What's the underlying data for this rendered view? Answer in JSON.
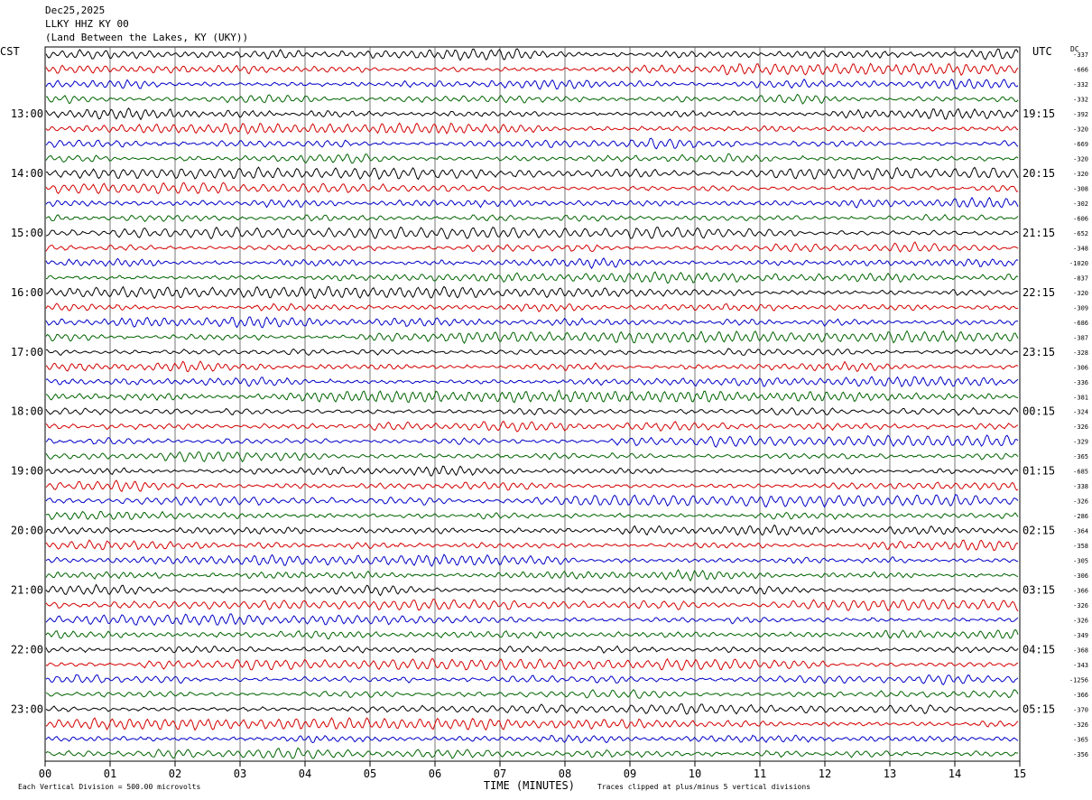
{
  "header": {
    "date": "Dec25,2025",
    "station": "LLKY HHZ KY 00",
    "location": "(Land Between the Lakes, KY (UKY))"
  },
  "axes": {
    "left_label": "CST",
    "right_label": "UTC",
    "dc_label": "DC",
    "x_label": "TIME (MINUTES)",
    "x_ticks": [
      "00",
      "01",
      "02",
      "03",
      "04",
      "05",
      "06",
      "07",
      "08",
      "09",
      "10",
      "11",
      "12",
      "13",
      "14",
      "15"
    ],
    "cst_hours": [
      "13:00",
      "14:00",
      "15:00",
      "16:00",
      "17:00",
      "18:00",
      "19:00",
      "20:00",
      "21:00",
      "22:00",
      "23:00"
    ],
    "utc_hours": [
      "19:15",
      "20:15",
      "21:15",
      "22:15",
      "23:15",
      "00:15",
      "01:15",
      "02:15",
      "03:15",
      "04:15",
      "05:15"
    ]
  },
  "footer": {
    "scale_note": "Each Vertical Division =  500.00 microvolts",
    "clip_note": "Traces clipped at plus/minus 5 vertical divisions"
  },
  "chart_data": {
    "type": "line",
    "description_of_data": "helicorder",
    "trace_minutes": 15,
    "x_range": [
      0,
      15
    ],
    "trace_colors": [
      "#000000",
      "#d40000",
      "#0000c8",
      "#006400"
    ],
    "dc_offsets": [
      "-337",
      "-666",
      "-332",
      "-332",
      "-392",
      "-320",
      "-669",
      "-320",
      "-320",
      "-308",
      "-302",
      "-606",
      "-652",
      "-348",
      "-1020",
      "-837",
      "-320",
      "-309",
      "-686",
      "-387",
      "-328",
      "-306",
      "-336",
      "-381",
      "-324",
      "-326",
      "-329",
      "-365",
      "-685",
      "-338",
      "-326",
      "-286",
      "-364",
      "-358",
      "-305",
      "-306",
      "-366",
      "-326",
      "-326",
      "-349",
      "-368",
      "-343",
      "-1256",
      "-366",
      "-370",
      "-326",
      "-365",
      "-356"
    ]
  }
}
